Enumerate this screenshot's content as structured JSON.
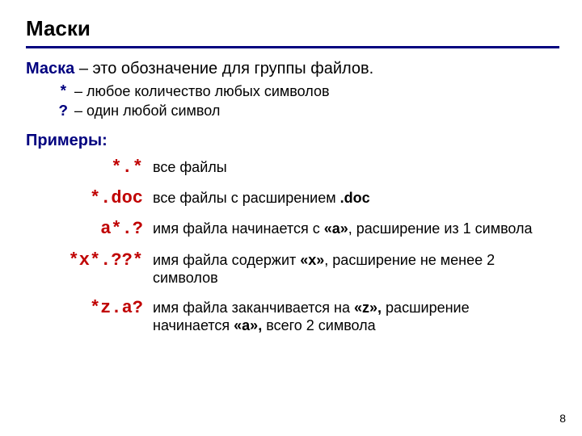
{
  "title": "Маски",
  "definition": {
    "term": "Маска",
    "rest": " – это обозначение для группы файлов."
  },
  "wildcards": [
    {
      "sym": "*",
      "desc": "– любое количество любых символов"
    },
    {
      "sym": "?",
      "desc": "– один любой символ"
    }
  ],
  "examples_heading": "Примеры:",
  "examples": [
    {
      "pattern": "*.*",
      "desc_html": "все файлы"
    },
    {
      "pattern": "*.doc",
      "desc_html": "все файлы с расширением <b>.doc</b>"
    },
    {
      "pattern": "a*.?",
      "desc_html": "имя файла начинается с <b>«a»</b>, расширение из 1 символа"
    },
    {
      "pattern": "*x*.??*",
      "desc_html": "имя файла содержит <b>«x»</b>, расширение не менее 2 символов"
    },
    {
      "pattern": "*z.a?",
      "desc_html": "имя файла заканчивается на <b>«z»,</b> расширение начинается  <b>«a»,</b> всего 2 символа"
    }
  ],
  "page_number": "8",
  "colors": {
    "accent_blue": "#00007f",
    "pattern_red": "#c00000",
    "rule_blue": "#00007f",
    "background": "#ffffff",
    "text": "#000000"
  },
  "fonts": {
    "body": "Arial",
    "mono": "Courier New",
    "title_size_pt": 26,
    "body_size_pt": 20,
    "example_desc_size_pt": 18,
    "pattern_size_pt": 22
  }
}
